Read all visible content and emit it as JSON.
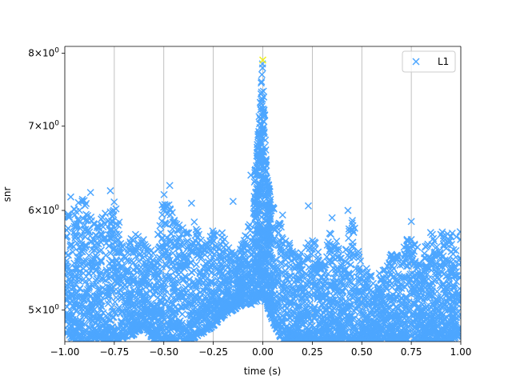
{
  "chart_data": {
    "type": "scatter",
    "xlabel": "time (s)",
    "ylabel": "snr",
    "xlim": [
      -1.0,
      1.0
    ],
    "ylim": [
      4.72,
      8.1
    ],
    "yscale": "log",
    "grid": "x-major vertical",
    "legend_position": "top-right",
    "x_ticks": [
      {
        "value": -1.0,
        "label": "−1.00"
      },
      {
        "value": -0.75,
        "label": "−0.75"
      },
      {
        "value": -0.5,
        "label": "−0.50"
      },
      {
        "value": -0.25,
        "label": "−0.25"
      },
      {
        "value": 0.0,
        "label": "0.00"
      },
      {
        "value": 0.25,
        "label": "0.25"
      },
      {
        "value": 0.5,
        "label": "0.50"
      },
      {
        "value": 0.75,
        "label": "0.75"
      },
      {
        "value": 1.0,
        "label": "1.00"
      }
    ],
    "y_ticks": [
      {
        "value": 5,
        "mantissa": "5",
        "base": "10",
        "exp": "0"
      },
      {
        "value": 6,
        "mantissa": "6",
        "base": "10",
        "exp": "0"
      },
      {
        "value": 7,
        "mantissa": "7",
        "base": "10",
        "exp": "0"
      },
      {
        "value": 8,
        "mantissa": "8",
        "base": "10",
        "exp": "0"
      }
    ],
    "series": [
      {
        "name": "L1",
        "color": "#4da6ff",
        "marker": "x",
        "envelope": {
          "x": [
            -1.0,
            -0.95,
            -0.9,
            -0.85,
            -0.8,
            -0.75,
            -0.7,
            -0.65,
            -0.6,
            -0.55,
            -0.5,
            -0.45,
            -0.4,
            -0.35,
            -0.3,
            -0.25,
            -0.2,
            -0.15,
            -0.1,
            -0.05,
            -0.02,
            0.0,
            0.02,
            0.05,
            0.1,
            0.15,
            0.2,
            0.25,
            0.3,
            0.35,
            0.4,
            0.45,
            0.5,
            0.55,
            0.6,
            0.65,
            0.7,
            0.75,
            0.8,
            0.85,
            0.9,
            0.95,
            1.0
          ],
          "y_low": [
            4.8,
            4.72,
            4.72,
            4.75,
            4.72,
            4.72,
            4.75,
            4.78,
            4.85,
            4.72,
            4.72,
            4.72,
            4.72,
            4.75,
            4.8,
            4.85,
            4.95,
            5.0,
            5.05,
            5.05,
            5.1,
            5.1,
            5.05,
            4.9,
            4.72,
            4.72,
            4.72,
            4.75,
            4.72,
            4.72,
            4.72,
            4.72,
            4.72,
            4.72,
            4.72,
            4.72,
            4.72,
            4.75,
            4.72,
            4.72,
            4.72,
            4.72,
            4.78
          ],
          "y_high": [
            6.1,
            6.05,
            6.15,
            5.9,
            6.0,
            6.15,
            5.6,
            5.75,
            5.7,
            5.55,
            6.2,
            5.95,
            5.8,
            5.95,
            5.6,
            5.85,
            5.75,
            5.55,
            5.65,
            6.1,
            7.2,
            7.9,
            6.4,
            6.05,
            5.8,
            5.6,
            5.55,
            5.75,
            5.45,
            5.85,
            5.5,
            5.95,
            5.45,
            5.35,
            5.35,
            5.55,
            5.55,
            5.8,
            5.5,
            5.8,
            5.8,
            5.75,
            5.8
          ]
        },
        "peak": {
          "x": 0.0,
          "y": 7.9,
          "color": "#f0f020"
        },
        "outliers": [
          {
            "x": -0.97,
            "y": 6.15
          },
          {
            "x": -0.87,
            "y": 6.2
          },
          {
            "x": -0.77,
            "y": 6.22
          },
          {
            "x": -0.47,
            "y": 6.28
          },
          {
            "x": -0.36,
            "y": 6.08
          },
          {
            "x": -0.15,
            "y": 6.1
          },
          {
            "x": -0.06,
            "y": 6.4
          },
          {
            "x": 0.1,
            "y": 5.95
          },
          {
            "x": 0.23,
            "y": 6.05
          },
          {
            "x": 0.43,
            "y": 6.0
          },
          {
            "x": 0.75,
            "y": 5.88
          },
          {
            "x": 0.35,
            "y": 5.92
          }
        ]
      }
    ]
  }
}
